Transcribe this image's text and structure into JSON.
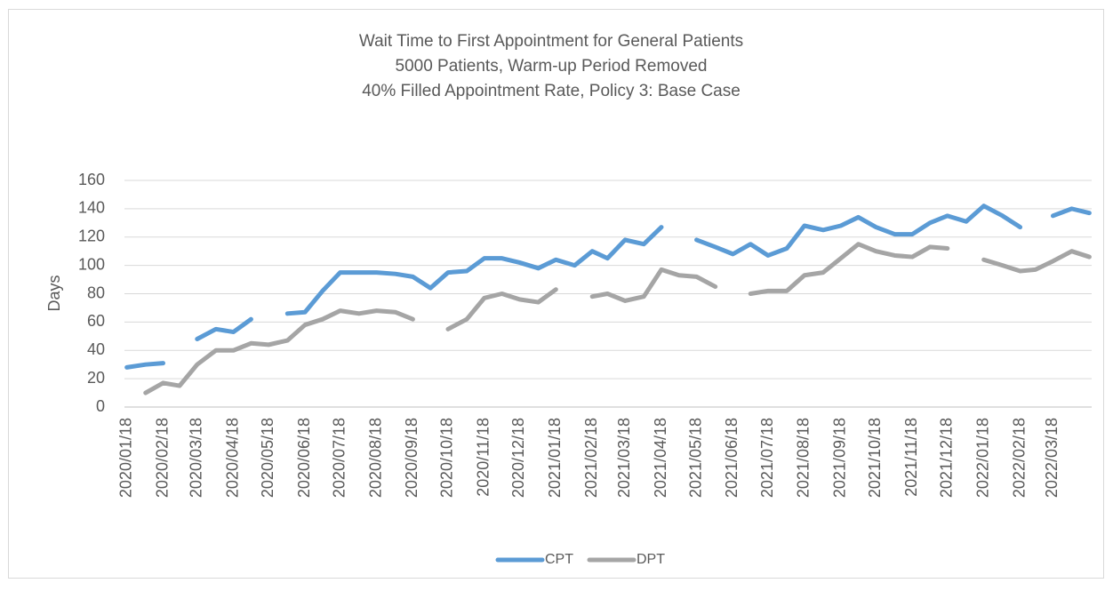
{
  "chart_data": {
    "type": "line",
    "title": [
      "Wait Time to First Appointment for General Patients",
      "5000 Patients, Warm-up Period Removed",
      "40% Filled Appointment Rate, Policy 3: Base Case"
    ],
    "ylabel": "Days",
    "x": [
      "2020/01/18",
      "2020/02/03",
      "2020/02/18",
      "2020/03/03",
      "2020/03/18",
      "2020/04/03",
      "2020/04/18",
      "2020/05/03",
      "2020/05/18",
      "2020/06/03",
      "2020/06/18",
      "2020/07/03",
      "2020/07/18",
      "2020/08/03",
      "2020/08/18",
      "2020/09/03",
      "2020/09/18",
      "2020/10/03",
      "2020/10/18",
      "2020/11/03",
      "2020/11/18",
      "2020/12/03",
      "2020/12/18",
      "2021/01/03",
      "2021/01/18",
      "2021/02/03",
      "2021/02/18",
      "2021/03/03",
      "2021/03/18",
      "2021/04/03",
      "2021/04/18",
      "2021/05/03",
      "2021/05/18",
      "2021/06/03",
      "2021/06/18",
      "2021/07/03",
      "2021/07/18",
      "2021/08/03",
      "2021/08/18",
      "2021/09/03",
      "2021/09/18",
      "2021/10/03",
      "2021/10/18",
      "2021/11/03",
      "2021/11/18",
      "2021/12/03",
      "2021/12/18",
      "2022/01/03",
      "2022/01/18",
      "2022/02/03",
      "2022/02/18",
      "2022/03/03",
      "2022/03/18",
      "2022/04/03",
      "2022/04/18"
    ],
    "series": [
      {
        "name": "CPT",
        "color": "#5b9bd5",
        "values": [
          28,
          30,
          31,
          null,
          48,
          55,
          53,
          62,
          null,
          66,
          67,
          82,
          95,
          95,
          95,
          94,
          92,
          84,
          95,
          96,
          105,
          105,
          102,
          98,
          104,
          100,
          110,
          105,
          118,
          115,
          127,
          null,
          118,
          113,
          108,
          115,
          107,
          112,
          128,
          125,
          128,
          134,
          127,
          122,
          122,
          130,
          135,
          131,
          142,
          135,
          127,
          null,
          135,
          140,
          137
        ]
      },
      {
        "name": "DPT",
        "color": "#a5a5a5",
        "values": [
          null,
          10,
          17,
          15,
          30,
          40,
          40,
          45,
          44,
          47,
          58,
          62,
          68,
          66,
          68,
          67,
          62,
          null,
          55,
          62,
          77,
          80,
          76,
          74,
          83,
          null,
          78,
          80,
          75,
          78,
          97,
          93,
          92,
          85,
          null,
          80,
          82,
          82,
          93,
          95,
          105,
          115,
          110,
          107,
          106,
          113,
          112,
          null,
          104,
          100,
          96,
          97,
          103,
          110,
          106
        ]
      }
    ],
    "xlim": [
      "2020/01/16",
      "2022/04/20"
    ],
    "xticks": [
      "2020/01/18",
      "2020/02/18",
      "2020/03/18",
      "2020/04/18",
      "2020/05/18",
      "2020/06/18",
      "2020/07/18",
      "2020/08/18",
      "2020/09/18",
      "2020/10/18",
      "2020/11/18",
      "2020/12/18",
      "2021/01/18",
      "2021/02/18",
      "2021/03/18",
      "2021/04/18",
      "2021/05/18",
      "2021/06/18",
      "2021/07/18",
      "2021/08/18",
      "2021/09/18",
      "2021/10/18",
      "2021/11/18",
      "2021/12/18",
      "2022/01/18",
      "2022/02/18",
      "2022/03/18"
    ],
    "ylim": [
      0,
      160
    ],
    "yticks": [
      0,
      20,
      40,
      60,
      80,
      100,
      120,
      140,
      160
    ],
    "grid": true,
    "legend": "bottom"
  }
}
